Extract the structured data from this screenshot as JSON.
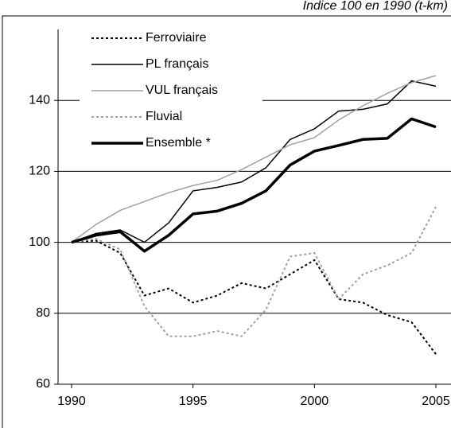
{
  "chart_data": {
    "type": "line",
    "subtitle": "Indice 100 en 1990 (t-km)",
    "x": [
      1990,
      1991,
      1992,
      1993,
      1994,
      1995,
      1996,
      1997,
      1998,
      1999,
      2000,
      2001,
      2002,
      2003,
      2004,
      2005
    ],
    "xlim": [
      1990,
      2005
    ],
    "xticks": [
      1990,
      1995,
      2000,
      2005
    ],
    "ylim": [
      60,
      160
    ],
    "yticks": [
      60,
      80,
      100,
      120,
      140
    ],
    "grid": true,
    "legend": "upper left",
    "series": [
      {
        "name": "Ferroviaire",
        "color": "#000000",
        "style": "dotted",
        "values": [
          100,
          100.5,
          97,
          85,
          87,
          83,
          85,
          88.5,
          87,
          91,
          95,
          84,
          83,
          79.5,
          77.5,
          68.5
        ]
      },
      {
        "name": "PL français",
        "color": "#000000",
        "style": "solid",
        "values": [
          100,
          102.5,
          103.5,
          100,
          105.5,
          114.5,
          115.5,
          117,
          121,
          129,
          132,
          137,
          137.5,
          139,
          145.5,
          144
        ]
      },
      {
        "name": "VUL français",
        "color": "#a0a0a0",
        "style": "solid",
        "values": [
          100,
          105,
          109,
          111.5,
          114,
          116,
          117.5,
          120.5,
          124,
          127.5,
          129.5,
          134.5,
          138.5,
          142,
          145,
          147
        ]
      },
      {
        "name": "Fluvial",
        "color": "#a0a0a0",
        "style": "dotted",
        "values": [
          100,
          101,
          98,
          82,
          73.5,
          73.5,
          75,
          73.5,
          81,
          96,
          97,
          84,
          91,
          93.5,
          97,
          110
        ]
      },
      {
        "name": "Ensemble *",
        "color": "#000000",
        "style": "bold",
        "values": [
          100,
          102,
          103,
          97.5,
          102,
          108,
          108.8,
          111,
          114.5,
          121.8,
          125.7,
          127.3,
          129,
          129.3,
          134.8,
          132.5
        ]
      }
    ]
  }
}
